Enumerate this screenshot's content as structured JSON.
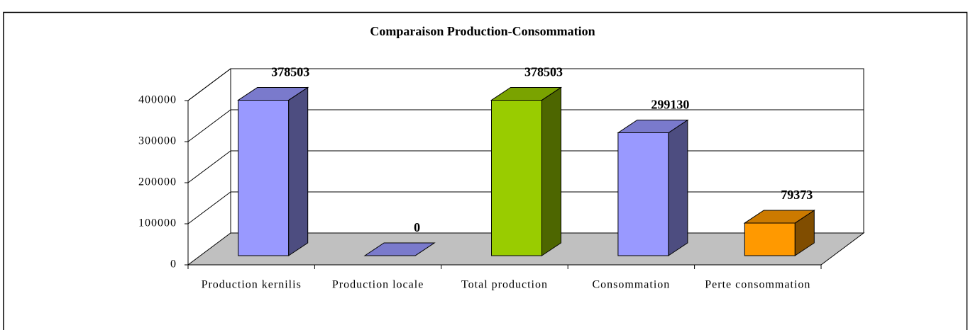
{
  "chart_data": {
    "type": "bar3d",
    "title": "Comparaison Production-Consommation",
    "categories": [
      "Production kernilis",
      "Production locale",
      "Total production",
      "Consommation",
      "Perte consommation"
    ],
    "values": [
      378503,
      0,
      378503,
      299130,
      79373
    ],
    "colors": [
      "#9999ff",
      "#9999ff",
      "#99cc00",
      "#9999ff",
      "#ff9900"
    ],
    "ylim": [
      0,
      400000
    ],
    "yticks": [
      0,
      100000,
      200000,
      300000,
      400000
    ],
    "grid": true
  }
}
